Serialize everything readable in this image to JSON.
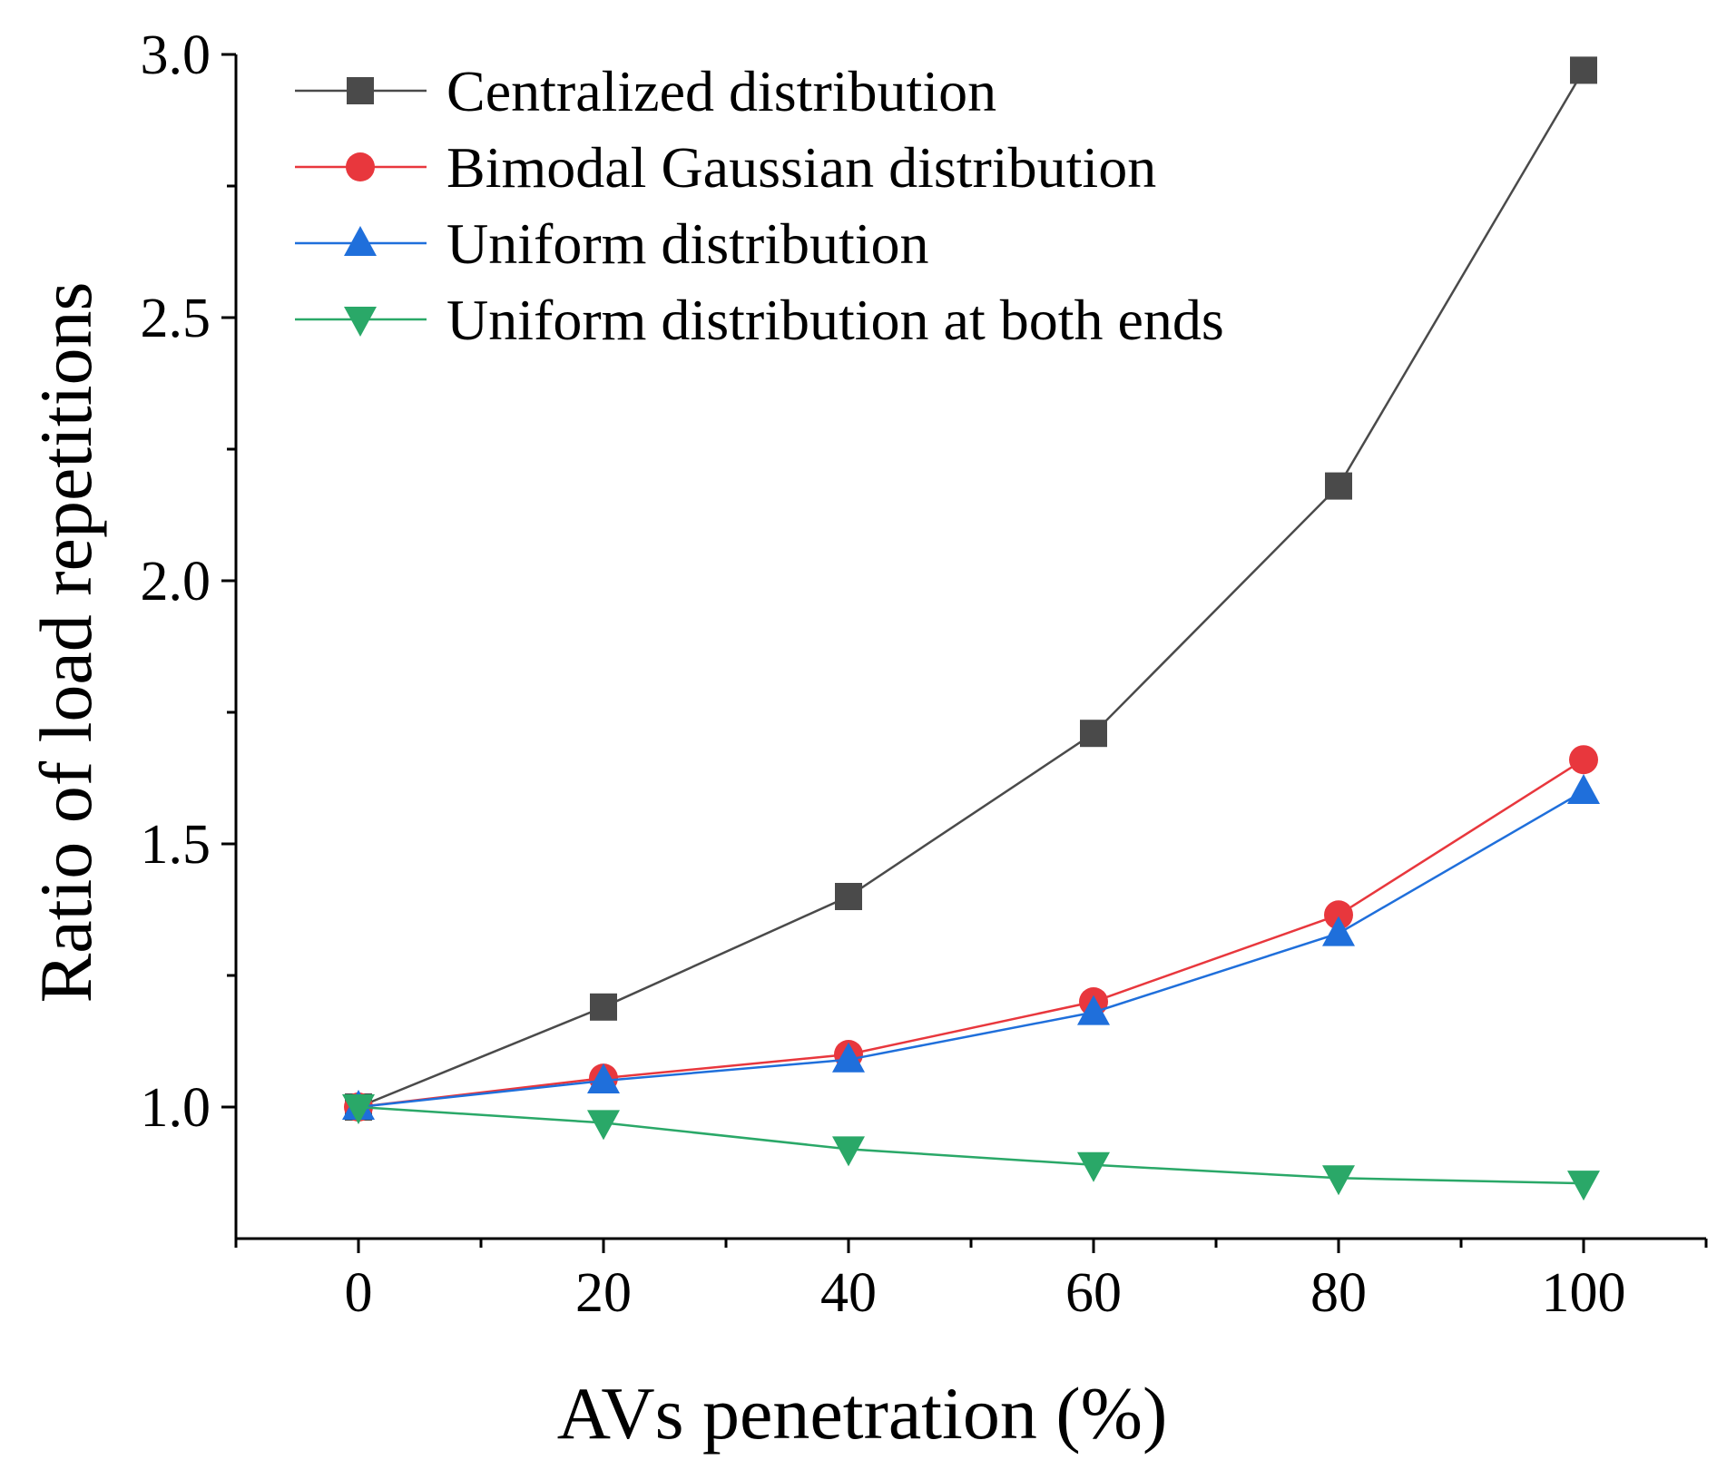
{
  "chart_data": {
    "type": "line",
    "title": "",
    "xlabel": "AVs penetration (%)",
    "ylabel": "Ratio of load repetitions",
    "x": [
      0,
      20,
      40,
      60,
      80,
      100
    ],
    "xlim": [
      -10,
      110
    ],
    "ylim": [
      0.75,
      3.0
    ],
    "xticks": [
      0,
      20,
      40,
      60,
      80,
      100
    ],
    "xtick_labels": [
      "0",
      "20",
      "40",
      "60",
      "80",
      "100"
    ],
    "yticks": [
      1.0,
      1.5,
      2.0,
      2.5,
      3.0
    ],
    "ytick_labels": [
      "1.0",
      "1.5",
      "2.0",
      "2.5",
      "3.0"
    ],
    "legend_position": "top-left",
    "grid": false,
    "series": [
      {
        "name": "Centralized distribution",
        "marker": "square",
        "color": "#4a4a4a",
        "values": [
          1.0,
          1.19,
          1.4,
          1.71,
          2.18,
          2.97
        ]
      },
      {
        "name": "Bimodal Gaussian distribution",
        "marker": "circle",
        "color": "#e8373d",
        "values": [
          1.0,
          1.055,
          1.1,
          1.2,
          1.365,
          1.66
        ]
      },
      {
        "name": "Uniform distribution",
        "marker": "triangle-up",
        "color": "#1f6fdb",
        "values": [
          1.0,
          1.05,
          1.09,
          1.18,
          1.33,
          1.6
        ]
      },
      {
        "name": "Uniform distribution at both ends",
        "marker": "triangle-down",
        "color": "#2aa868",
        "values": [
          1.0,
          0.97,
          0.92,
          0.89,
          0.865,
          0.855
        ]
      }
    ]
  }
}
